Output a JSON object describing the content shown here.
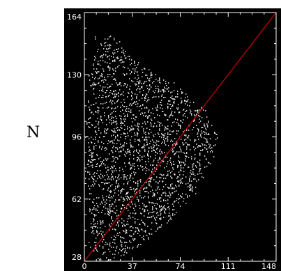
{
  "side_label": "N",
  "chart_data": {
    "type": "scatter",
    "title": "",
    "xlabel": "",
    "ylabel": "",
    "xlim": [
      0,
      148
    ],
    "ylim": [
      28,
      164
    ],
    "x_ticks": [
      "0",
      "37",
      "74",
      "111",
      "148"
    ],
    "y_ticks": [
      "28",
      "62",
      "96",
      "130",
      "164"
    ],
    "background": "#000000",
    "axis_color": "#ffffff",
    "point_color": "#ffffff",
    "grid": false,
    "legend": "none",
    "series": [
      {
        "kind": "points",
        "description_envelope": [
          [
            8,
            28
          ],
          [
            5,
            45
          ],
          [
            2,
            70
          ],
          [
            1,
            100
          ],
          [
            3,
            130
          ],
          [
            10,
            146
          ],
          [
            18,
            152
          ],
          [
            24,
            150
          ],
          [
            35,
            140
          ],
          [
            52,
            132
          ],
          [
            68,
            124
          ],
          [
            82,
            117
          ],
          [
            95,
            110
          ],
          [
            103,
            96
          ],
          [
            100,
            85
          ],
          [
            90,
            72
          ],
          [
            78,
            60
          ],
          [
            62,
            48
          ],
          [
            45,
            38
          ],
          [
            30,
            31
          ],
          [
            18,
            28
          ]
        ]
      },
      {
        "kind": "line",
        "color": "#c00000",
        "x": [
          0,
          148
        ],
        "y": [
          28,
          164
        ]
      }
    ]
  }
}
